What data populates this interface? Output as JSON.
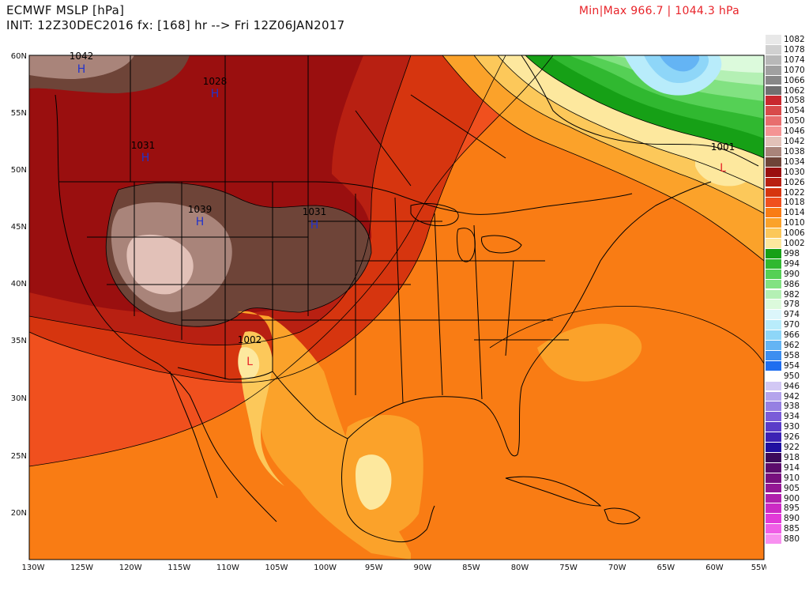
{
  "header": {
    "title": "ECMWF MSLP [hPa]",
    "init_line": "INIT: 12Z30DEC2016 fx: [168] hr --> Fri 12Z06JAN2017",
    "minmax": "Min|Max 966.7 | 1044.3 hPa"
  },
  "axes": {
    "lat_labels": [
      "60N",
      "55N",
      "50N",
      "45N",
      "40N",
      "35N",
      "30N",
      "25N",
      "20N"
    ],
    "lon_labels": [
      "130W",
      "125W",
      "120W",
      "115W",
      "110W",
      "105W",
      "100W",
      "95W",
      "90W",
      "85W",
      "80W",
      "75W",
      "70W",
      "65W",
      "60W",
      "55W"
    ]
  },
  "pressure_centers": [
    {
      "label": "1042",
      "symbol": "H"
    },
    {
      "label": "1028",
      "symbol": "H"
    },
    {
      "label": "1031",
      "symbol": "H"
    },
    {
      "label": "1039",
      "symbol": "H"
    },
    {
      "label": "1031",
      "symbol": "H"
    },
    {
      "label": "1002",
      "symbol": "L"
    },
    {
      "label": "1001",
      "symbol": "L"
    }
  ],
  "legend": [
    {
      "label": "1082",
      "color": "#e8e8e8"
    },
    {
      "label": "1078",
      "color": "#d0d0d0"
    },
    {
      "label": "1074",
      "color": "#b8b8b8"
    },
    {
      "label": "1070",
      "color": "#a0a0a0"
    },
    {
      "label": "1066",
      "color": "#888888"
    },
    {
      "label": "1062",
      "color": "#707070"
    },
    {
      "label": "1058",
      "color": "#c8282e"
    },
    {
      "label": "1054",
      "color": "#d84a4a"
    },
    {
      "label": "1050",
      "color": "#e86e6e"
    },
    {
      "label": "1046",
      "color": "#f49494"
    },
    {
      "label": "1042",
      "color": "#e2c1b8"
    },
    {
      "label": "1038",
      "color": "#a9847a"
    },
    {
      "label": "1034",
      "color": "#6e4438"
    },
    {
      "label": "1030",
      "color": "#9a0f0f"
    },
    {
      "label": "1026",
      "color": "#b82012"
    },
    {
      "label": "1022",
      "color": "#d6350f"
    },
    {
      "label": "1018",
      "color": "#f0501e"
    },
    {
      "label": "1014",
      "color": "#f97c14"
    },
    {
      "label": "1010",
      "color": "#fba22a"
    },
    {
      "label": "1006",
      "color": "#fcc85a"
    },
    {
      "label": "1002",
      "color": "#fde89e"
    },
    {
      "label": "998",
      "color": "#16a016"
    },
    {
      "label": "994",
      "color": "#30b830"
    },
    {
      "label": "990",
      "color": "#55d055"
    },
    {
      "label": "986",
      "color": "#82e282"
    },
    {
      "label": "982",
      "color": "#b4f0b4"
    },
    {
      "label": "978",
      "color": "#dcfadc"
    },
    {
      "label": "974",
      "color": "#dcf6fb"
    },
    {
      "label": "970",
      "color": "#b8ecfb"
    },
    {
      "label": "966",
      "color": "#8ed6f8"
    },
    {
      "label": "962",
      "color": "#64b4f4"
    },
    {
      "label": "958",
      "color": "#3c8ef0"
    },
    {
      "label": "954",
      "color": "#1e6ef0"
    },
    {
      "label": "950",
      "color": "#ffffff"
    },
    {
      "label": "946",
      "color": "#d2c8f4"
    },
    {
      "label": "942",
      "color": "#b4a4ec"
    },
    {
      "label": "938",
      "color": "#9680e2"
    },
    {
      "label": "934",
      "color": "#7a5cd8"
    },
    {
      "label": "930",
      "color": "#5a3cc8"
    },
    {
      "label": "926",
      "color": "#3c22b4"
    },
    {
      "label": "922",
      "color": "#2010a0"
    },
    {
      "label": "918",
      "color": "#3c0a5a"
    },
    {
      "label": "914",
      "color": "#5c0c6c"
    },
    {
      "label": "910",
      "color": "#78107e"
    },
    {
      "label": "905",
      "color": "#941894"
    },
    {
      "label": "900",
      "color": "#b020ac"
    },
    {
      "label": "895",
      "color": "#cc2ac4"
    },
    {
      "label": "890",
      "color": "#e23ad8"
    },
    {
      "label": "885",
      "color": "#f05ee6"
    },
    {
      "label": "880",
      "color": "#f890f0"
    }
  ],
  "colors": {
    "high_symbol": "#2233cc",
    "low_symbol": "#e8242a"
  }
}
